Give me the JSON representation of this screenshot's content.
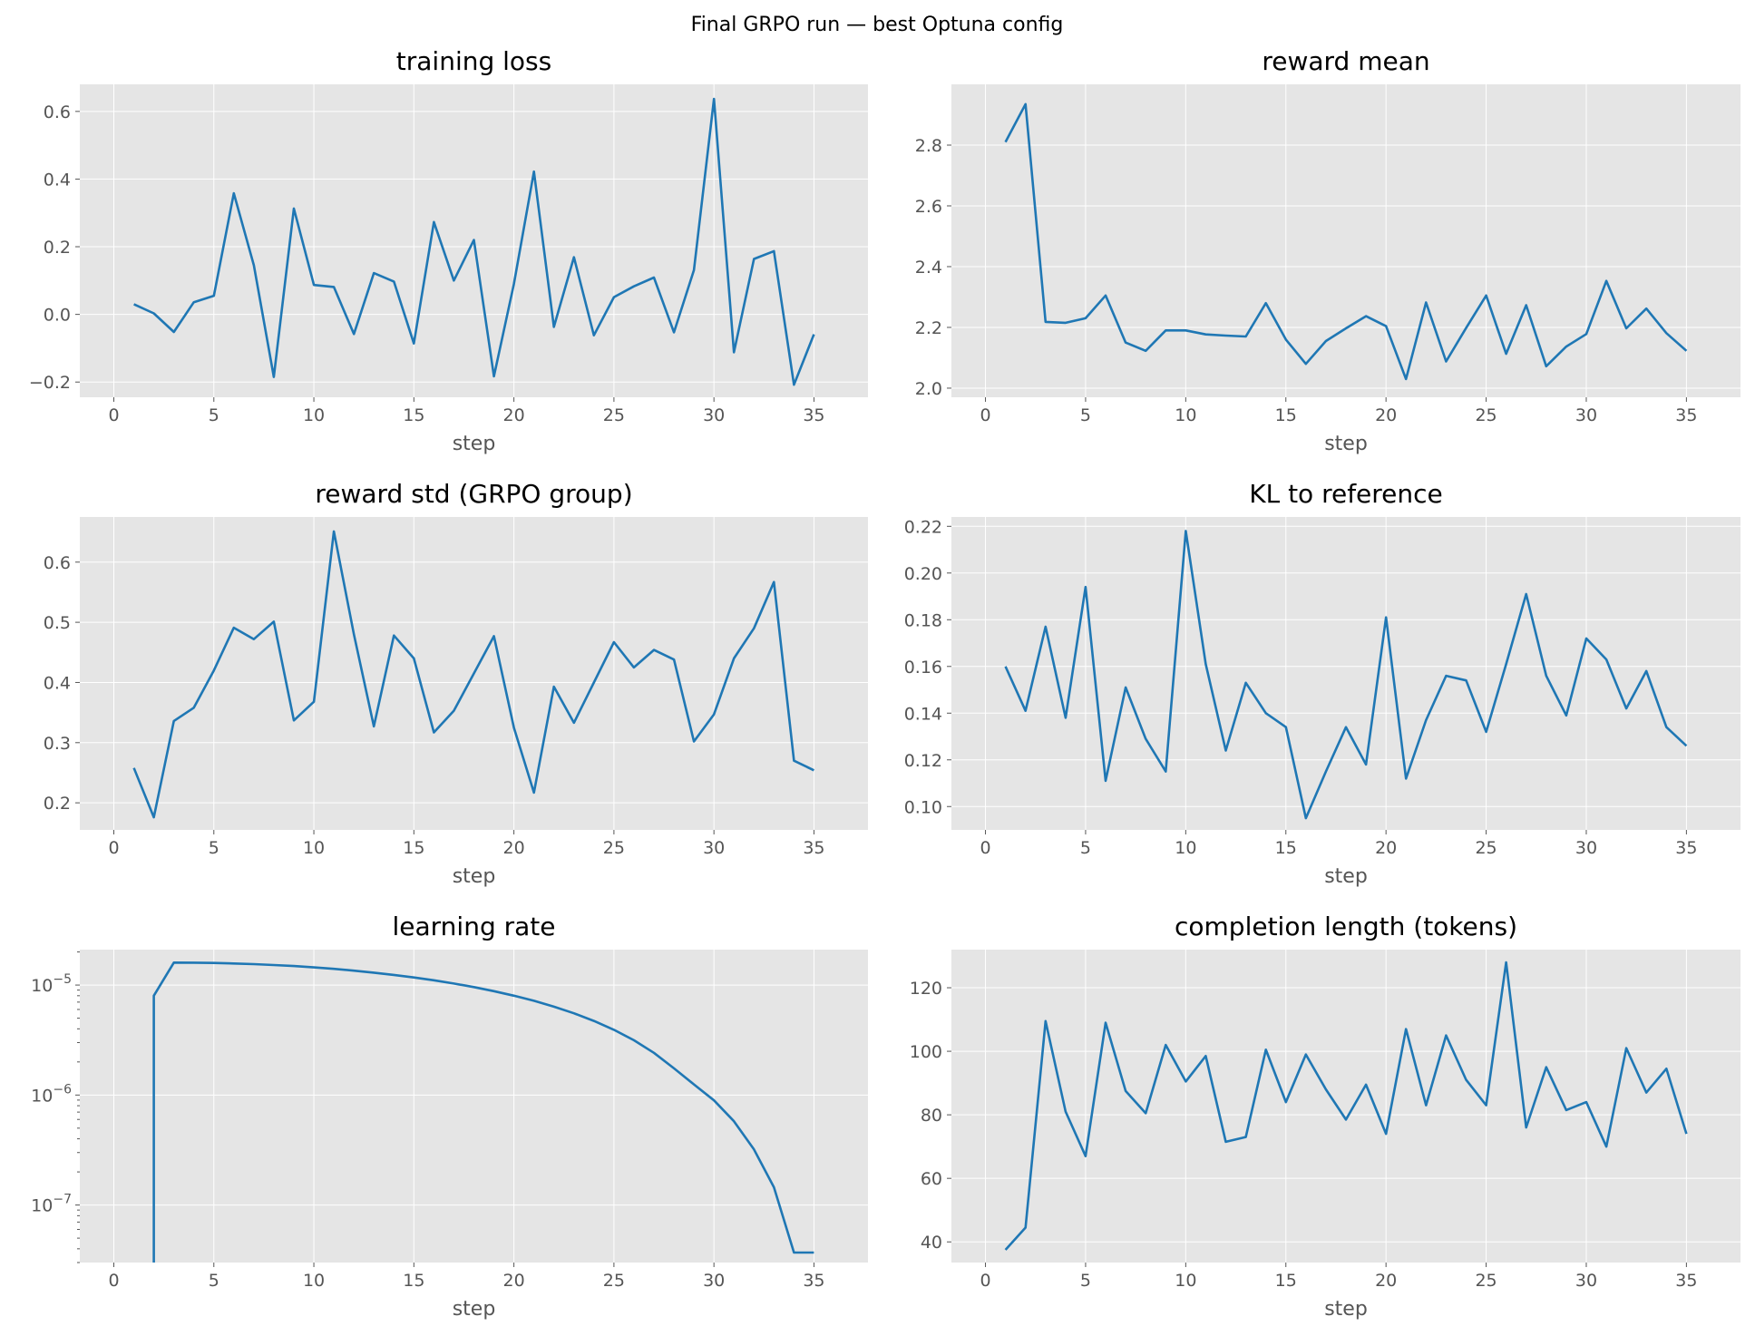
{
  "figure_title": "Final GRPO run — best Optuna config",
  "colors": {
    "line": "#1f77b4",
    "axes_bg": "#e5e5e5",
    "grid": "#ffffff",
    "tick_text": "#555555",
    "title_text": "#000000"
  },
  "chart_data": [
    {
      "type": "line",
      "title": "training loss",
      "xlabel": "step",
      "ylabel": "",
      "xlim": [
        -1.7,
        37.7
      ],
      "ylim": [
        -0.245,
        0.68
      ],
      "xticks": [
        0,
        5,
        10,
        15,
        20,
        25,
        30,
        35
      ],
      "xtick_labels": [
        "0",
        "5",
        "10",
        "15",
        "20",
        "25",
        "30",
        "35"
      ],
      "yticks": [
        -0.2,
        0.0,
        0.2,
        0.4,
        0.6
      ],
      "ytick_labels": [
        "−0.2",
        "0.0",
        "0.2",
        "0.4",
        "0.6"
      ],
      "yscale": "linear",
      "grid": true,
      "x": [
        1,
        2,
        3,
        4,
        5,
        6,
        7,
        8,
        9,
        10,
        11,
        12,
        13,
        14,
        15,
        16,
        17,
        18,
        19,
        20,
        21,
        22,
        23,
        24,
        25,
        26,
        27,
        28,
        29,
        30,
        31,
        32,
        33,
        34,
        35
      ],
      "y": [
        0.03,
        0.003,
        -0.052,
        0.036,
        0.055,
        0.358,
        0.145,
        -0.185,
        0.313,
        0.087,
        0.081,
        -0.058,
        0.122,
        0.097,
        -0.086,
        0.273,
        0.1,
        0.22,
        -0.183,
        0.09,
        0.422,
        -0.037,
        0.169,
        -0.062,
        0.051,
        0.083,
        0.109,
        -0.053,
        0.131,
        0.637,
        -0.112,
        0.164,
        0.187,
        -0.208,
        -0.059
      ]
    },
    {
      "type": "line",
      "title": "reward mean",
      "xlabel": "step",
      "ylabel": "",
      "xlim": [
        -1.7,
        37.7
      ],
      "ylim": [
        1.97,
        3.0
      ],
      "xticks": [
        0,
        5,
        10,
        15,
        20,
        25,
        30,
        35
      ],
      "xtick_labels": [
        "0",
        "5",
        "10",
        "15",
        "20",
        "25",
        "30",
        "35"
      ],
      "yticks": [
        2.0,
        2.2,
        2.4,
        2.6,
        2.8
      ],
      "ytick_labels": [
        "2.0",
        "2.2",
        "2.4",
        "2.6",
        "2.8"
      ],
      "yscale": "linear",
      "grid": true,
      "x": [
        1,
        2,
        3,
        4,
        5,
        6,
        7,
        8,
        9,
        10,
        11,
        12,
        13,
        14,
        15,
        16,
        17,
        18,
        19,
        20,
        21,
        22,
        23,
        24,
        25,
        26,
        27,
        28,
        29,
        30,
        31,
        32,
        33,
        34,
        35
      ],
      "y": [
        2.81,
        2.935,
        2.218,
        2.215,
        2.23,
        2.305,
        2.15,
        2.123,
        2.19,
        2.19,
        2.177,
        2.173,
        2.17,
        2.28,
        2.16,
        2.08,
        2.155,
        2.197,
        2.237,
        2.204,
        2.03,
        2.282,
        2.088,
        2.198,
        2.305,
        2.113,
        2.273,
        2.072,
        2.137,
        2.178,
        2.353,
        2.197,
        2.262,
        2.181,
        2.123
      ]
    },
    {
      "type": "line",
      "title": "reward std (GRPO group)",
      "xlabel": "step",
      "ylabel": "",
      "xlim": [
        -1.7,
        37.7
      ],
      "ylim": [
        0.155,
        0.675
      ],
      "xticks": [
        0,
        5,
        10,
        15,
        20,
        25,
        30,
        35
      ],
      "xtick_labels": [
        "0",
        "5",
        "10",
        "15",
        "20",
        "25",
        "30",
        "35"
      ],
      "yticks": [
        0.2,
        0.3,
        0.4,
        0.5,
        0.6
      ],
      "ytick_labels": [
        "0.2",
        "0.3",
        "0.4",
        "0.5",
        "0.6"
      ],
      "yscale": "linear",
      "grid": true,
      "x": [
        1,
        2,
        3,
        4,
        5,
        6,
        7,
        8,
        9,
        10,
        11,
        12,
        13,
        14,
        15,
        16,
        17,
        18,
        19,
        20,
        21,
        22,
        23,
        24,
        25,
        26,
        27,
        28,
        29,
        30,
        31,
        32,
        33,
        34,
        35
      ],
      "y": [
        0.258,
        0.176,
        0.336,
        0.358,
        0.42,
        0.491,
        0.472,
        0.501,
        0.337,
        0.368,
        0.651,
        0.48,
        0.327,
        0.478,
        0.44,
        0.317,
        0.353,
        0.415,
        0.477,
        0.325,
        0.217,
        0.393,
        0.333,
        0.4,
        0.467,
        0.425,
        0.454,
        0.438,
        0.302,
        0.347,
        0.44,
        0.49,
        0.567,
        0.27,
        0.254
      ]
    },
    {
      "type": "line",
      "title": "KL to reference",
      "xlabel": "step",
      "ylabel": "",
      "xlim": [
        -1.7,
        37.7
      ],
      "ylim": [
        0.09,
        0.224
      ],
      "xticks": [
        0,
        5,
        10,
        15,
        20,
        25,
        30,
        35
      ],
      "xtick_labels": [
        "0",
        "5",
        "10",
        "15",
        "20",
        "25",
        "30",
        "35"
      ],
      "yticks": [
        0.1,
        0.12,
        0.14,
        0.16,
        0.18,
        0.2,
        0.22
      ],
      "ytick_labels": [
        "0.10",
        "0.12",
        "0.14",
        "0.16",
        "0.18",
        "0.20",
        "0.22"
      ],
      "yscale": "linear",
      "grid": true,
      "x": [
        1,
        2,
        3,
        4,
        5,
        6,
        7,
        8,
        9,
        10,
        11,
        12,
        13,
        14,
        15,
        16,
        17,
        18,
        19,
        20,
        21,
        22,
        23,
        24,
        25,
        26,
        27,
        28,
        29,
        30,
        31,
        32,
        33,
        34,
        35
      ],
      "y": [
        0.16,
        0.141,
        0.177,
        0.138,
        0.194,
        0.111,
        0.151,
        0.129,
        0.115,
        0.218,
        0.161,
        0.124,
        0.153,
        0.14,
        0.134,
        0.095,
        0.115,
        0.134,
        0.118,
        0.181,
        0.112,
        0.137,
        0.156,
        0.154,
        0.132,
        0.161,
        0.191,
        0.156,
        0.139,
        0.172,
        0.163,
        0.142,
        0.158,
        0.134,
        0.126
      ]
    },
    {
      "type": "line",
      "title": "learning rate",
      "xlabel": "step",
      "ylabel": "",
      "xlim": [
        -1.7,
        37.7
      ],
      "ylim": [
        3e-08,
        2.1e-05
      ],
      "xticks": [
        0,
        5,
        10,
        15,
        20,
        25,
        30,
        35
      ],
      "xtick_labels": [
        "0",
        "5",
        "10",
        "15",
        "20",
        "25",
        "30",
        "35"
      ],
      "yticks": [
        1e-07,
        1e-06,
        1e-05
      ],
      "ytick_base": "10",
      "ytick_exponents": [
        "−7",
        "−6",
        "−5"
      ],
      "yscale": "log",
      "grid": true,
      "x": [
        2,
        2,
        3,
        4,
        5,
        6,
        7,
        8,
        9,
        10,
        11,
        12,
        13,
        14,
        15,
        16,
        17,
        18,
        19,
        20,
        21,
        22,
        23,
        24,
        25,
        26,
        27,
        28,
        29,
        30,
        31,
        32,
        33,
        34,
        35
      ],
      "y": [
        3e-08,
        8e-06,
        1.6e-05,
        1.597e-05,
        1.588e-05,
        1.572e-05,
        1.55e-05,
        1.522e-05,
        1.488e-05,
        1.448e-05,
        1.403e-05,
        1.353e-05,
        1.297e-05,
        1.237e-05,
        1.173e-05,
        1.105e-05,
        1.033e-05,
        9.58e-06,
        8.8e-06,
        8e-06,
        7.19e-06,
        6.36e-06,
        5.54e-06,
        4.72e-06,
        3.92e-06,
        3.15e-06,
        2.42e-06,
        1.75e-06,
        1.25e-06,
        8.95e-07,
        5.78e-07,
        3.2e-07,
        1.45e-07,
        3.7e-08,
        3.7e-08
      ]
    },
    {
      "type": "line",
      "title": "completion length (tokens)",
      "xlabel": "step",
      "ylabel": "",
      "xlim": [
        -1.7,
        37.7
      ],
      "ylim": [
        33.5,
        132
      ],
      "xticks": [
        0,
        5,
        10,
        15,
        20,
        25,
        30,
        35
      ],
      "xtick_labels": [
        "0",
        "5",
        "10",
        "15",
        "20",
        "25",
        "30",
        "35"
      ],
      "yticks": [
        40,
        60,
        80,
        100,
        120
      ],
      "ytick_labels": [
        "40",
        "60",
        "80",
        "100",
        "120"
      ],
      "yscale": "linear",
      "grid": true,
      "x": [
        1,
        2,
        3,
        4,
        5,
        6,
        7,
        8,
        9,
        10,
        11,
        12,
        13,
        14,
        15,
        16,
        17,
        18,
        19,
        20,
        21,
        22,
        23,
        24,
        25,
        26,
        27,
        28,
        29,
        30,
        31,
        32,
        33,
        34,
        35
      ],
      "y": [
        37.5,
        44.5,
        109.5,
        81,
        67,
        109,
        87.5,
        80.5,
        102,
        90.5,
        98.5,
        71.5,
        73,
        100.5,
        84,
        99,
        88,
        78.5,
        89.5,
        74,
        107,
        83,
        105,
        91,
        83,
        128,
        76,
        95,
        81.5,
        84,
        70,
        101,
        87,
        94.5,
        74
      ]
    }
  ]
}
